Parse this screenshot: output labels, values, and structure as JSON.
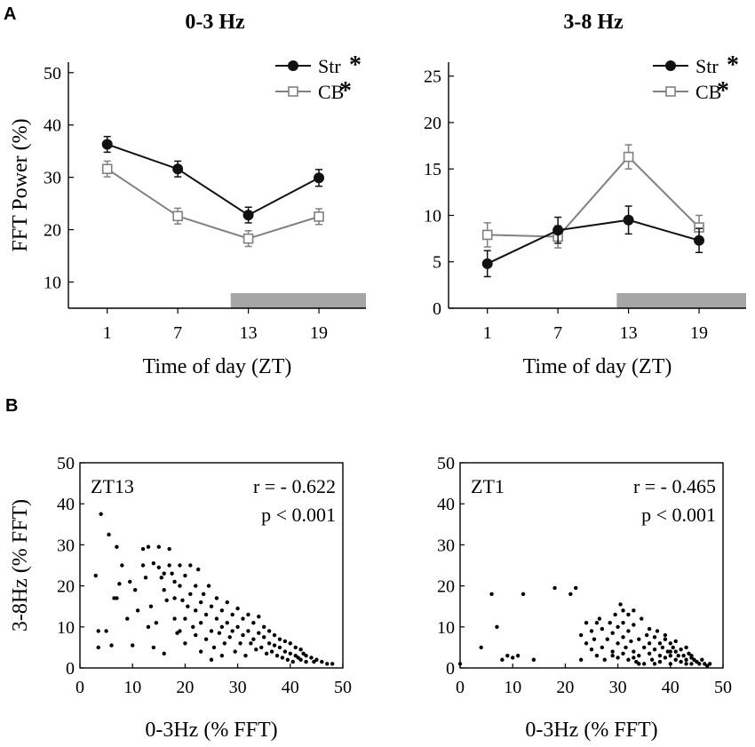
{
  "panel_labels": {
    "a": "A",
    "b": "B"
  },
  "chart_data": [
    {
      "id": "a1",
      "type": "line",
      "title": "0-3 Hz",
      "xlabel": "Time of day (ZT)",
      "ylabel": "FFT Power (%)",
      "x": [
        1,
        7,
        13,
        19
      ],
      "xticks": [
        "1",
        "7",
        "13",
        "19"
      ],
      "yticks": [
        "10",
        "20",
        "30",
        "40",
        "50"
      ],
      "ylim": [
        5,
        52
      ],
      "dark_period": [
        11.5,
        23
      ],
      "series": [
        {
          "name": "Str",
          "values": [
            36.3,
            31.6,
            22.8,
            29.9
          ],
          "err": [
            1.5,
            1.5,
            1.5,
            1.6
          ],
          "color": "#111111",
          "marker": "circle"
        },
        {
          "name": "CB",
          "values": [
            31.6,
            22.6,
            18.3,
            22.5
          ],
          "err": [
            1.5,
            1.5,
            1.5,
            1.5
          ],
          "color": "#808080",
          "marker": "square"
        }
      ],
      "legend_star": "*"
    },
    {
      "id": "a2",
      "type": "line",
      "title": "3-8 Hz",
      "xlabel": "Time of day (ZT)",
      "ylabel": "",
      "x": [
        1,
        7,
        13,
        19
      ],
      "xticks": [
        "1",
        "7",
        "13",
        "19"
      ],
      "yticks": [
        "0",
        "5",
        "10",
        "15",
        "20",
        "25"
      ],
      "ylim": [
        0,
        26.5
      ],
      "dark_period": [
        12,
        23
      ],
      "series": [
        {
          "name": "Str",
          "values": [
            4.8,
            8.4,
            9.5,
            7.3
          ],
          "err": [
            1.4,
            1.4,
            1.5,
            1.3
          ],
          "color": "#111111",
          "marker": "circle"
        },
        {
          "name": "CB",
          "values": [
            7.9,
            7.7,
            16.3,
            8.7
          ],
          "err": [
            1.3,
            1.2,
            1.3,
            1.3
          ],
          "color": "#808080",
          "marker": "square"
        }
      ],
      "legend_star": "*"
    },
    {
      "id": "b1",
      "type": "scatter",
      "xlabel": "0-3Hz (% FFT)",
      "ylabel": "3-8Hz (% FFT)",
      "xticks": [
        "0",
        "10",
        "20",
        "30",
        "40",
        "50"
      ],
      "yticks": [
        "0",
        "10",
        "20",
        "30",
        "40",
        "50"
      ],
      "xlim": [
        0,
        50
      ],
      "ylim": [
        0,
        50
      ],
      "label": "ZT13",
      "stat_r": "r = - 0.622",
      "stat_p": "p < 0.001",
      "points": [
        [
          4,
          37.5
        ],
        [
          5.5,
          32.5
        ],
        [
          7,
          29.5
        ],
        [
          3,
          22.5
        ],
        [
          3.5,
          9
        ],
        [
          5,
          9
        ],
        [
          6.5,
          17
        ],
        [
          7,
          17
        ],
        [
          7.5,
          20.5
        ],
        [
          8,
          25
        ],
        [
          3.5,
          5
        ],
        [
          9.5,
          21
        ],
        [
          10.5,
          19
        ],
        [
          10,
          5.5
        ],
        [
          11,
          14
        ],
        [
          12,
          29
        ],
        [
          12,
          25
        ],
        [
          12.5,
          22
        ],
        [
          13,
          29.5
        ],
        [
          13.5,
          15
        ],
        [
          13,
          10
        ],
        [
          14,
          5
        ],
        [
          14,
          25.5
        ],
        [
          15,
          29.5
        ],
        [
          15,
          24.5
        ],
        [
          15.5,
          22
        ],
        [
          16,
          23
        ],
        [
          16,
          19
        ],
        [
          16.5,
          16.5
        ],
        [
          17,
          29
        ],
        [
          17,
          25
        ],
        [
          17.5,
          23
        ],
        [
          18,
          21
        ],
        [
          18,
          17
        ],
        [
          18,
          12
        ],
        [
          18.5,
          8.5
        ],
        [
          19,
          25
        ],
        [
          19,
          20
        ],
        [
          19.5,
          16.5
        ],
        [
          20,
          22.5
        ],
        [
          20,
          12
        ],
        [
          20,
          6
        ],
        [
          20.5,
          15
        ],
        [
          21,
          25
        ],
        [
          21,
          18
        ],
        [
          21.5,
          10
        ],
        [
          22,
          20
        ],
        [
          22,
          14
        ],
        [
          22,
          8
        ],
        [
          22.5,
          24
        ],
        [
          23,
          16
        ],
        [
          23,
          11
        ],
        [
          23,
          4
        ],
        [
          23.5,
          18
        ],
        [
          24,
          13
        ],
        [
          24,
          7
        ],
        [
          24.5,
          20
        ],
        [
          25,
          15
        ],
        [
          25,
          9
        ],
        [
          25.5,
          5
        ],
        [
          26,
          17
        ],
        [
          26,
          12
        ],
        [
          26.5,
          8.5
        ],
        [
          27,
          14
        ],
        [
          27,
          10
        ],
        [
          27.5,
          6
        ],
        [
          28,
          16
        ],
        [
          28,
          11
        ],
        [
          28.5,
          7.5
        ],
        [
          29,
          13
        ],
        [
          29,
          9
        ],
        [
          29.5,
          4
        ],
        [
          30,
          14.5
        ],
        [
          30,
          10
        ],
        [
          30.5,
          6
        ],
        [
          31,
          12
        ],
        [
          31,
          8
        ],
        [
          31.5,
          3
        ],
        [
          32,
          13
        ],
        [
          32,
          9
        ],
        [
          32.5,
          6
        ],
        [
          33,
          11
        ],
        [
          33,
          7
        ],
        [
          33.5,
          4.5
        ],
        [
          34,
          12.5
        ],
        [
          34,
          8.5
        ],
        [
          34.5,
          5
        ],
        [
          35,
          10
        ],
        [
          35,
          7.5
        ],
        [
          35.5,
          3.5
        ],
        [
          36,
          9
        ],
        [
          36,
          6
        ],
        [
          36.5,
          4
        ],
        [
          37,
          8
        ],
        [
          37,
          5.5
        ],
        [
          37.5,
          3
        ],
        [
          38,
          7
        ],
        [
          38,
          5
        ],
        [
          38.5,
          2.5
        ],
        [
          39,
          6.5
        ],
        [
          39,
          4
        ],
        [
          39.5,
          2
        ],
        [
          40,
          6
        ],
        [
          40,
          3.5
        ],
        [
          40.5,
          1.5
        ],
        [
          41,
          5
        ],
        [
          41,
          3
        ],
        [
          41.5,
          2.5
        ],
        [
          42,
          4.5
        ],
        [
          42,
          2
        ],
        [
          42.5,
          3.5
        ],
        [
          43,
          3
        ],
        [
          43,
          1.5
        ],
        [
          44,
          2.5
        ],
        [
          44.5,
          1.5
        ],
        [
          45,
          2
        ],
        [
          46,
          1.5
        ],
        [
          47,
          1
        ],
        [
          48,
          1
        ],
        [
          6,
          5.5
        ],
        [
          9,
          12
        ],
        [
          16,
          3.5
        ],
        [
          25,
          2
        ],
        [
          14.5,
          11
        ],
        [
          19,
          9
        ],
        [
          27,
          3
        ]
      ]
    },
    {
      "id": "b2",
      "type": "scatter",
      "xlabel": "0-3Hz (% FFT)",
      "ylabel": "",
      "xticks": [
        "0",
        "10",
        "20",
        "30",
        "40",
        "50"
      ],
      "yticks": [
        "0",
        "10",
        "20",
        "30",
        "40",
        "50"
      ],
      "xlim": [
        0,
        50
      ],
      "ylim": [
        0,
        50
      ],
      "label": "ZT1",
      "stat_r": "r = - 0.465",
      "stat_p": "p < 0.001",
      "points": [
        [
          0,
          1
        ],
        [
          4,
          5
        ],
        [
          6,
          18
        ],
        [
          7,
          10
        ],
        [
          8,
          2
        ],
        [
          9,
          3
        ],
        [
          10,
          2.5
        ],
        [
          11,
          3
        ],
        [
          12,
          18
        ],
        [
          14,
          2
        ],
        [
          18,
          19.5
        ],
        [
          21,
          18
        ],
        [
          22,
          19.5
        ],
        [
          23,
          2
        ],
        [
          23,
          8
        ],
        [
          24,
          11
        ],
        [
          25,
          9
        ],
        [
          25,
          4.5
        ],
        [
          25.5,
          7
        ],
        [
          26,
          3
        ],
        [
          26.5,
          12
        ],
        [
          27,
          9.5
        ],
        [
          27,
          5
        ],
        [
          27.5,
          2
        ],
        [
          28,
          7
        ],
        [
          28.5,
          11
        ],
        [
          29,
          4
        ],
        [
          29,
          8.5
        ],
        [
          29.5,
          13
        ],
        [
          30,
          2.5
        ],
        [
          30,
          6
        ],
        [
          30,
          10
        ],
        [
          30.5,
          15.5
        ],
        [
          31,
          3.5
        ],
        [
          31,
          7.5
        ],
        [
          31,
          11
        ],
        [
          31.5,
          5
        ],
        [
          32,
          2
        ],
        [
          32,
          9
        ],
        [
          32,
          13
        ],
        [
          32.5,
          6.5
        ],
        [
          33,
          4
        ],
        [
          33,
          10.5
        ],
        [
          33,
          14
        ],
        [
          33.5,
          1.5
        ],
        [
          34,
          7
        ],
        [
          34,
          3
        ],
        [
          34.5,
          12
        ],
        [
          35,
          5
        ],
        [
          35,
          1
        ],
        [
          35.5,
          8
        ],
        [
          36,
          3.5
        ],
        [
          36,
          6
        ],
        [
          36.5,
          2
        ],
        [
          37,
          7.5
        ],
        [
          37,
          4.5
        ],
        [
          37,
          1
        ],
        [
          37.5,
          9
        ],
        [
          38,
          6
        ],
        [
          38,
          3
        ],
        [
          38,
          1.5
        ],
        [
          38.5,
          5
        ],
        [
          39,
          2.5
        ],
        [
          39,
          7
        ],
        [
          39.5,
          4
        ],
        [
          40,
          1
        ],
        [
          40,
          6
        ],
        [
          40,
          3
        ],
        [
          40.5,
          5
        ],
        [
          41,
          2
        ],
        [
          41,
          4
        ],
        [
          41.5,
          3
        ],
        [
          42,
          1.5
        ],
        [
          42,
          4.5
        ],
        [
          42.5,
          3
        ],
        [
          43,
          2
        ],
        [
          43,
          1
        ],
        [
          43.5,
          3.5
        ],
        [
          44,
          2.5
        ],
        [
          44,
          1
        ],
        [
          44.5,
          2
        ],
        [
          45,
          1.5
        ],
        [
          45.5,
          1
        ],
        [
          46,
          2
        ],
        [
          46.5,
          1
        ],
        [
          47,
          0.5
        ],
        [
          47.5,
          1
        ],
        [
          29,
          3
        ],
        [
          36,
          9.5
        ],
        [
          39,
          8
        ],
        [
          44,
          3
        ],
        [
          34,
          1
        ],
        [
          41,
          6.5
        ],
        [
          26,
          11
        ],
        [
          24,
          6
        ],
        [
          31,
          14
        ],
        [
          43,
          5
        ],
        [
          40,
          4
        ],
        [
          33,
          2.5
        ]
      ]
    }
  ]
}
